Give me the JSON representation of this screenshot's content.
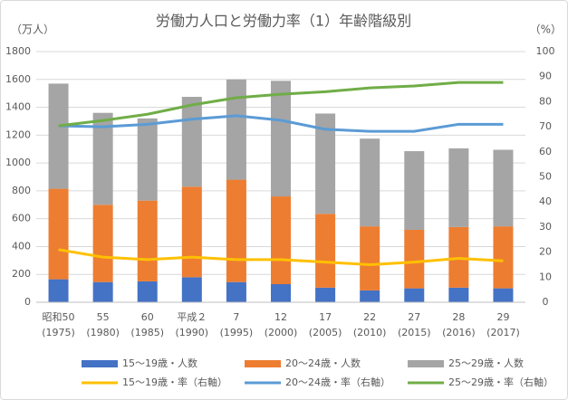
{
  "chart_data": {
    "type": "bar",
    "title": "労働力人口と労働力率（1）年齢階級別",
    "y_label": "（万人）",
    "y2_label": "（%）",
    "categories": [
      "昭和50\n(1975)",
      "55\n(1980)",
      "60\n(1985)",
      "平成２\n(1990)",
      "7\n(1995)",
      "12\n(2000)",
      "17\n(2005)",
      "22\n(2010)",
      "27\n(2015)",
      "28\n(2016)",
      "29\n(2017)"
    ],
    "series": [
      {
        "name": "15～19歳・人数",
        "type": "bar",
        "color": "#4472c4",
        "values": [
          165,
          145,
          150,
          180,
          145,
          130,
          105,
          85,
          100,
          105,
          100
        ]
      },
      {
        "name": "20～24歳・人数",
        "type": "bar",
        "color": "#ed7d31",
        "values": [
          650,
          555,
          580,
          650,
          735,
          630,
          530,
          460,
          420,
          435,
          445
        ]
      },
      {
        "name": "25～29歳・人数",
        "type": "bar",
        "color": "#a5a5a5",
        "values": [
          755,
          660,
          590,
          645,
          720,
          830,
          720,
          630,
          565,
          565,
          550
        ]
      },
      {
        "name": "15～19歳・率（右軸）",
        "type": "line",
        "axis": "y2",
        "color": "#ffc000",
        "values": [
          21,
          18,
          17,
          18,
          17,
          17,
          16,
          15,
          16,
          17.5,
          16.5
        ]
      },
      {
        "name": "20～24歳・率（右軸）",
        "type": "line",
        "axis": "y2",
        "color": "#5b9bd5",
        "values": [
          70.4,
          70,
          71,
          73,
          74.4,
          72.6,
          69,
          68.2,
          68.2,
          71,
          71
        ]
      },
      {
        "name": "25～29歳・率（右軸）",
        "type": "line",
        "axis": "y2",
        "color": "#70ad47",
        "values": [
          70.4,
          72.5,
          75,
          78.7,
          81.6,
          83,
          84,
          85.5,
          86.3,
          87.7,
          87.7
        ]
      }
    ],
    "ylim": [
      0,
      1800
    ],
    "yticks": [
      0,
      200,
      400,
      600,
      800,
      1000,
      1200,
      1400,
      1600,
      1800
    ],
    "y2lim": [
      0,
      100
    ],
    "y2ticks": [
      0,
      10,
      20,
      30,
      40,
      50,
      60,
      70,
      80,
      90,
      100
    ],
    "grid": true
  }
}
